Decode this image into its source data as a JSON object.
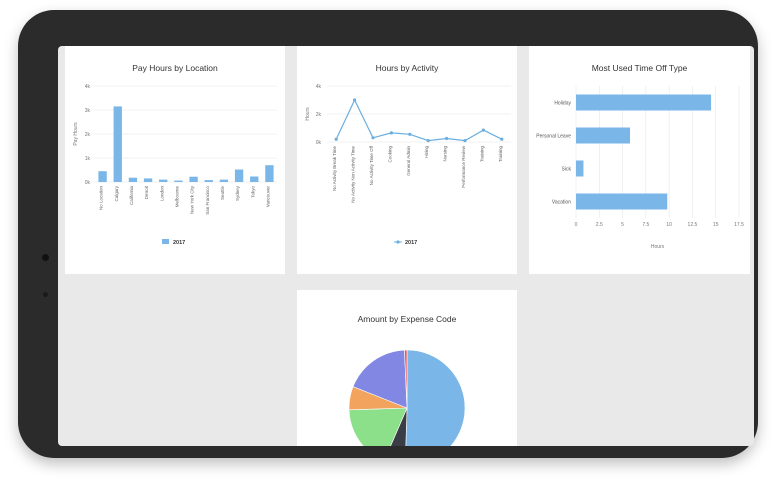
{
  "colors": {
    "bar": "#7ab6e8",
    "line": "#6aaee0",
    "grid": "#e6e6e6",
    "axis": "#999999"
  },
  "card1": {
    "title": "Pay Hours by Location",
    "legend": "2017"
  },
  "card2": {
    "title": "Hours by Activity",
    "legend": "2017"
  },
  "card3": {
    "title": "Most Used Time Off Type"
  },
  "card4": {
    "title": "Amount by Expense Code"
  },
  "chart_data": [
    {
      "type": "bar",
      "title": "Pay Hours by Location",
      "ylabel": "Pay Hours",
      "yticks": [
        "0k",
        "1k",
        "2k",
        "3k",
        "4k"
      ],
      "ylim": [
        0,
        4000
      ],
      "categories": [
        "No Location",
        "Calgary",
        "California",
        "Detroit",
        "London",
        "Melbourne",
        "New York City",
        "San Francisco",
        "Seattle",
        "Sydney",
        "Tokyo",
        "Vancouver"
      ],
      "series": [
        {
          "name": "2017",
          "values": [
            450,
            3150,
            180,
            150,
            100,
            60,
            220,
            80,
            100,
            520,
            230,
            700
          ]
        }
      ],
      "legend": "bottom-center",
      "grid": true
    },
    {
      "type": "line",
      "title": "Hours by Activity",
      "ylabel": "Hours",
      "yticks": [
        "0k",
        "2k",
        "4k"
      ],
      "ylim": [
        0,
        4000
      ],
      "categories": [
        "No Activity Break Time",
        "No Activity Non Activity Time",
        "No Activity Time Off",
        "Cooking",
        "General Admin",
        "Hiring",
        "Nursing",
        "Performance Review",
        "Training",
        "Training"
      ],
      "series": [
        {
          "name": "2017",
          "values": [
            200,
            3000,
            300,
            650,
            550,
            100,
            250,
            100,
            850,
            200
          ]
        }
      ],
      "legend": "bottom-center",
      "grid": true
    },
    {
      "type": "bar",
      "orientation": "horizontal",
      "title": "Most Used Time Off Type",
      "xlabel": "Hours",
      "xticks": [
        "0",
        "2.5",
        "5",
        "7.5",
        "10",
        "12.5",
        "15",
        "17.5"
      ],
      "xlim": [
        0,
        17.5
      ],
      "categories": [
        "Holiday",
        "Personal Leave",
        "Sick",
        "Vacation"
      ],
      "values": [
        14.5,
        5.8,
        0.8,
        9.8
      ],
      "grid": true
    },
    {
      "type": "pie",
      "title": "Amount by Expense Code",
      "slices": [
        {
          "value": 50.5,
          "color": "#7ab6e8"
        },
        {
          "value": 6,
          "color": "#3a3d45"
        },
        {
          "value": 18,
          "color": "#8ce08a"
        },
        {
          "value": 6.5,
          "color": "#f2a35e"
        },
        {
          "value": 18.3,
          "color": "#8287e4"
        },
        {
          "value": 0.7,
          "color": "#e55a5a"
        }
      ]
    }
  ]
}
